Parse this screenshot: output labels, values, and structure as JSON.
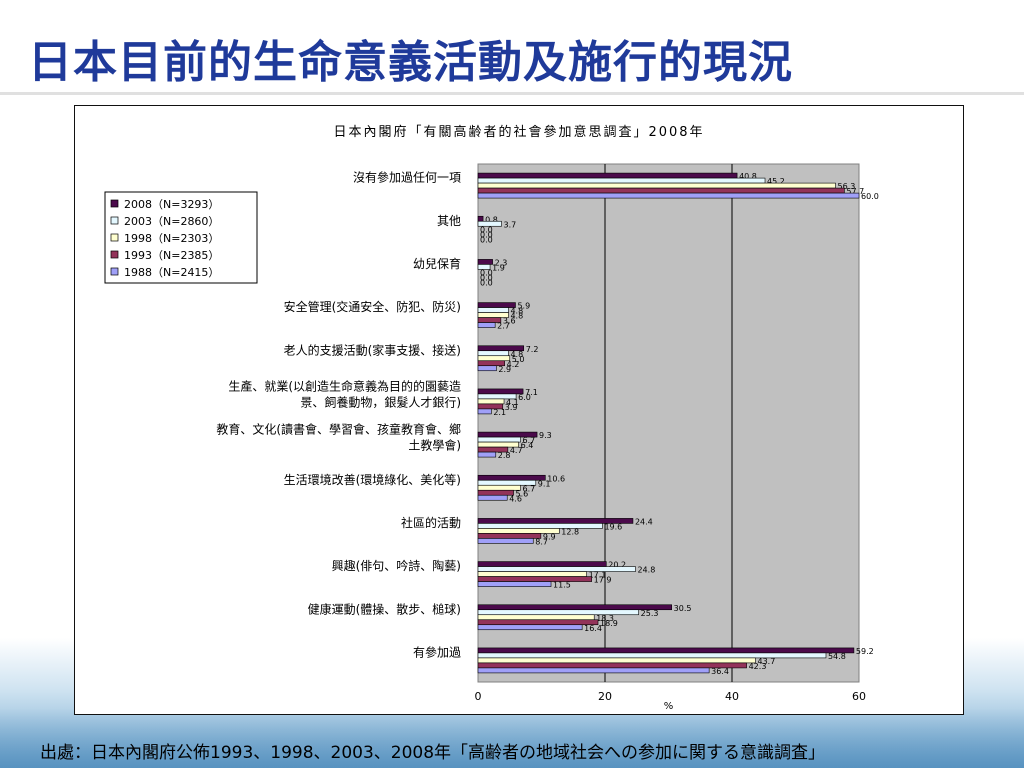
{
  "slide": {
    "title": "日本目前的生命意義活動及施行的現況",
    "source": "出處：日本內閣府公佈1993、1998、2003、2008年「高齢者の地域社会への参加に関する意識調査」"
  },
  "colors": {
    "title": "#1f3a9a",
    "plot_bg": "#c0c0c0",
    "series": [
      "#4b0a4b",
      "#e4f8ff",
      "#ffffd0",
      "#93335a",
      "#a0a0f8"
    ]
  },
  "chart_data": {
    "type": "bar",
    "orientation": "horizontal",
    "title": "日本內閣府「有關高齢者的社會參加意思調査」2008年",
    "xlabel": "%",
    "xlim": [
      0,
      60
    ],
    "xticks": [
      "0",
      "20",
      "40",
      "60"
    ],
    "grid": true,
    "legend_position": "top-left",
    "categories": [
      "沒有參加過任何一項",
      "其他",
      "幼兒保育",
      "安全管理(交通安全、防犯、防災)",
      "老人的支援活動(家事支援、接送)",
      "生產、就業(以創造生命意義為目的的園藝造景、飼養動物，銀髮人才銀行)",
      "教育、文化(讀書會、學習會、孩童教育會、鄉土教學會)",
      "生活環境改善(環境綠化、美化等)",
      "社區的活動",
      "興趣(俳句、吟詩、陶藝)",
      "健康運動(體操、散步、槌球)",
      "有參加過"
    ],
    "category_lines": [
      [
        "沒有參加過任何一項"
      ],
      [
        "其他"
      ],
      [
        "幼兒保育"
      ],
      [
        "安全管理(交通安全、防犯、防災)"
      ],
      [
        "老人的支援活動(家事支援、接送)"
      ],
      [
        "生產、就業(以創造生命意義為目的的園藝造",
        "景、飼養動物，銀髮人才銀行)"
      ],
      [
        "教育、文化(讀書會、學習會、孩童教育會、鄉",
        "土教學會)"
      ],
      [
        "生活環境改善(環境綠化、美化等)"
      ],
      [
        "社區的活動"
      ],
      [
        "興趣(俳句、吟詩、陶藝)"
      ],
      [
        "健康運動(體操、散步、槌球)"
      ],
      [
        "有參加過"
      ]
    ],
    "series": [
      {
        "name": "2008（N=3293）",
        "values": [
          40.8,
          0.8,
          2.3,
          5.9,
          7.2,
          7.1,
          9.3,
          10.6,
          24.4,
          20.2,
          30.5,
          59.2
        ]
      },
      {
        "name": "2003（N=2860）",
        "values": [
          45.2,
          3.7,
          1.9,
          4.8,
          4.8,
          6.0,
          6.7,
          9.1,
          19.6,
          24.8,
          25.3,
          54.8
        ]
      },
      {
        "name": "1998（N=2303）",
        "values": [
          56.3,
          0.0,
          0.0,
          4.8,
          5.0,
          4.1,
          6.4,
          6.7,
          12.8,
          17.1,
          18.3,
          43.7
        ]
      },
      {
        "name": "1993（N=2385）",
        "values": [
          57.7,
          0.0,
          0.0,
          3.6,
          4.2,
          3.9,
          4.7,
          5.6,
          9.9,
          17.9,
          18.9,
          42.3
        ]
      },
      {
        "name": "1988（N=2415）",
        "values": [
          60.0,
          0.0,
          0.0,
          2.7,
          2.9,
          2.1,
          2.8,
          4.6,
          8.7,
          11.5,
          16.4,
          36.4
        ]
      }
    ]
  }
}
